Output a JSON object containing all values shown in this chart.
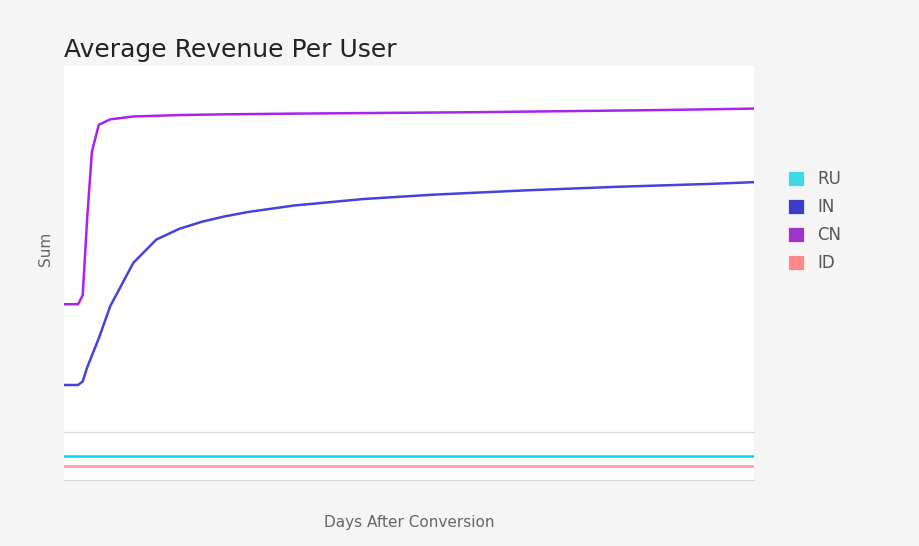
{
  "title": "Average Revenue Per User",
  "xlabel": "Days After Conversion",
  "ylabel": "Sum",
  "background_color": "#f5f5f5",
  "plot_bg_color": "#ffffff",
  "grid_color": "#d8d8d8",
  "legend_items": [
    {
      "label": "RU",
      "color": "#3dd9e8"
    },
    {
      "label": "IN",
      "color": "#3b3bcc"
    },
    {
      "label": "CN",
      "color": "#a033cc"
    },
    {
      "label": "ID",
      "color": "#ff8888"
    }
  ],
  "series_main": {
    "CN": {
      "color": "#aa22ee",
      "x": [
        0,
        3,
        6,
        8,
        10,
        12,
        15,
        20,
        30,
        50,
        70,
        100,
        140,
        180,
        220,
        260,
        300
      ],
      "y": [
        0.355,
        0.355,
        0.355,
        0.38,
        0.6,
        0.78,
        0.855,
        0.87,
        0.878,
        0.882,
        0.884,
        0.886,
        0.888,
        0.89,
        0.893,
        0.896,
        0.9
      ]
    },
    "IN": {
      "color": "#4444dd",
      "x": [
        0,
        3,
        6,
        8,
        10,
        15,
        20,
        30,
        40,
        50,
        60,
        70,
        80,
        100,
        130,
        160,
        200,
        240,
        280,
        300
      ],
      "y": [
        0.13,
        0.13,
        0.13,
        0.14,
        0.18,
        0.26,
        0.35,
        0.47,
        0.535,
        0.565,
        0.585,
        0.6,
        0.612,
        0.63,
        0.648,
        0.66,
        0.672,
        0.682,
        0.69,
        0.695
      ]
    }
  },
  "series_bottom": {
    "RU": {
      "color": "#00d8ee",
      "x": [
        0,
        300
      ],
      "y": [
        0.5,
        0.5
      ]
    },
    "ID": {
      "color": "#ff9999",
      "x": [
        0,
        300
      ],
      "y": [
        0.3,
        0.3
      ]
    }
  },
  "xlim": [
    0,
    300
  ],
  "title_fontsize": 18,
  "axis_label_fontsize": 11,
  "line_width": 1.8
}
